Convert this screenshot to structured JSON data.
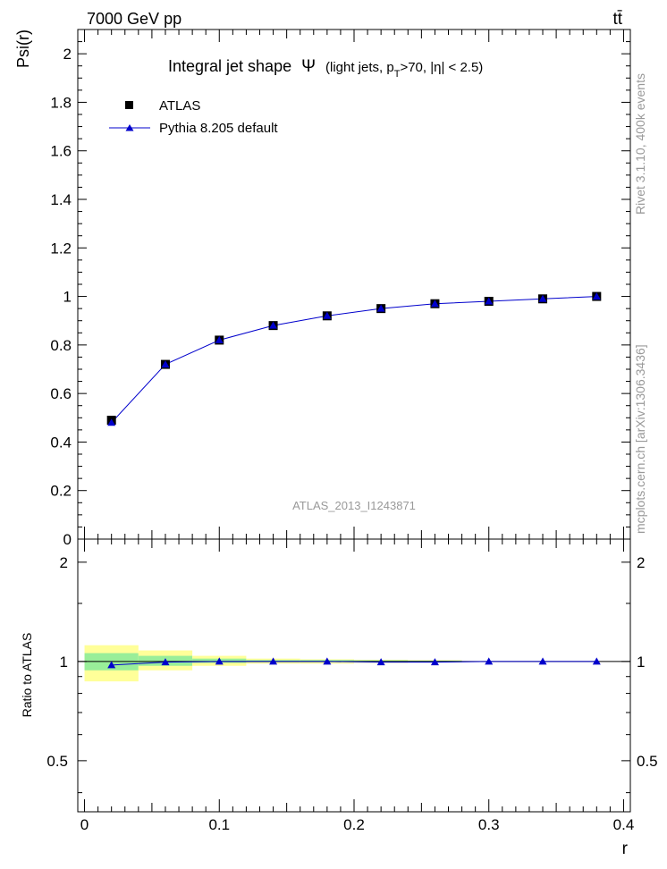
{
  "header": {
    "energy_label": "7000 GeV pp",
    "process_label": "tt̄",
    "rivet_label": "Rivet 3.1.10,  400k events",
    "mcplots_label": "mcplots.cern.ch [arXiv:1306.3436]",
    "analysis_label": "ATLAS_2013_I1243871"
  },
  "colors": {
    "data": "#000000",
    "mc": "#0000cc",
    "band_inner": "#99ee99",
    "band_outer": "#ffff99",
    "watermark": "#999999"
  },
  "chart_data": [
    {
      "type": "scatter",
      "panel": "main",
      "title_main": "Integral jet shape",
      "title_symbol": "Ψ",
      "title_detail_pre": "(light jets, p",
      "title_detail_sub": "T",
      "title_detail_post": ">70, |η| < 2.5)",
      "xlabel": "r",
      "ylabel": "Psi(r)",
      "xlim": [
        -0.005,
        0.405
      ],
      "ylim": [
        0,
        2.1
      ],
      "xticks": [
        0,
        0.1,
        0.2,
        0.3,
        0.4
      ],
      "xtick_labels": [
        "0",
        "0.1",
        "0.2",
        "0.3",
        "0.4"
      ],
      "yticks": [
        0,
        0.2,
        0.4,
        0.6,
        0.8,
        1.0,
        1.2,
        1.4,
        1.6,
        1.8,
        2.0
      ],
      "ytick_labels": [
        "0",
        "0.2",
        "0.4",
        "0.6",
        "0.8",
        "1",
        "1.2",
        "1.4",
        "1.6",
        "1.8",
        "2"
      ],
      "legend_position": "top-left",
      "x": [
        0.02,
        0.06,
        0.1,
        0.14,
        0.18,
        0.22,
        0.26,
        0.3,
        0.34,
        0.38
      ],
      "series": [
        {
          "name": "ATLAS",
          "marker": "square",
          "values": [
            0.49,
            0.72,
            0.82,
            0.88,
            0.92,
            0.95,
            0.97,
            0.98,
            0.99,
            1.0
          ]
        },
        {
          "name": "Pythia 8.205 default",
          "marker": "triangle",
          "values": [
            0.48,
            0.72,
            0.82,
            0.88,
            0.92,
            0.95,
            0.97,
            0.98,
            0.99,
            1.0
          ]
        }
      ]
    },
    {
      "type": "line",
      "panel": "ratio",
      "ylabel": "Ratio to ATLAS",
      "xlabel": "r",
      "xlim": [
        -0.005,
        0.405
      ],
      "ylim": [
        0.35,
        2.35
      ],
      "yscale": "log",
      "yticks_labeled": [
        0.5,
        1,
        2
      ],
      "ytick_labels": [
        "0.5",
        "1",
        "2"
      ],
      "ratio_ticks": [
        0.4,
        0.6,
        0.7,
        0.8,
        0.9,
        1.5
      ],
      "x": [
        0.02,
        0.06,
        0.1,
        0.14,
        0.18,
        0.22,
        0.26,
        0.3,
        0.34,
        0.38
      ],
      "ratio_values": [
        0.975,
        0.995,
        1.0,
        1.0,
        1.0,
        0.995,
        0.995,
        1.0,
        1.0,
        1.0
      ],
      "band_bins": [
        {
          "lo": 0.0,
          "hi": 0.04,
          "inner": [
            0.94,
            1.06
          ],
          "outer": [
            0.87,
            1.12
          ]
        },
        {
          "lo": 0.04,
          "hi": 0.08,
          "inner": [
            0.97,
            1.04
          ],
          "outer": [
            0.94,
            1.08
          ]
        },
        {
          "lo": 0.08,
          "hi": 0.12,
          "inner": [
            0.99,
            1.02
          ],
          "outer": [
            0.97,
            1.04
          ]
        },
        {
          "lo": 0.12,
          "hi": 0.16,
          "inner": [
            0.995,
            1.01
          ],
          "outer": [
            0.985,
            1.02
          ]
        },
        {
          "lo": 0.16,
          "hi": 0.2,
          "inner": [
            0.995,
            1.01
          ],
          "outer": [
            0.985,
            1.015
          ]
        },
        {
          "lo": 0.2,
          "hi": 0.24,
          "inner": [
            0.995,
            1.008
          ],
          "outer": [
            0.99,
            1.012
          ]
        },
        {
          "lo": 0.24,
          "hi": 0.28,
          "inner": [
            0.997,
            1.006
          ],
          "outer": [
            0.993,
            1.009
          ]
        }
      ]
    }
  ]
}
